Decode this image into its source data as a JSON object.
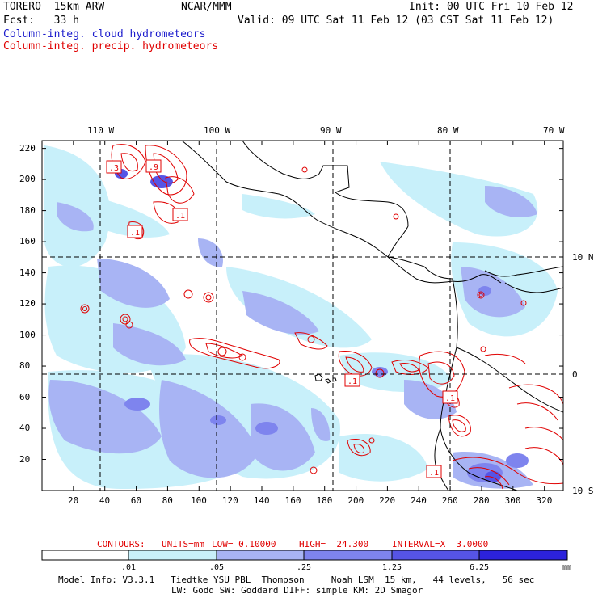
{
  "header": {
    "model_name": "TORERO  15km ARW",
    "org": "NCAR/MMM",
    "init": "Init: 00 UTC Fri 10 Feb 12",
    "fcst": "Fcst:   33 h",
    "valid": "Valid: 09 UTC Sat 11 Feb 12 (03 CST Sat 11 Feb 12)",
    "field1": "Column-integ. cloud hydrometeors",
    "field2": "Column-integ. precip. hydrometeors"
  },
  "map": {
    "lon_labels": [
      "110 W",
      "100 W",
      "90 W",
      "80 W",
      "70 W"
    ],
    "lat_labels": [
      "10 N",
      "0",
      "10 S"
    ],
    "y_ticks": [
      "220",
      "200",
      "180",
      "160",
      "140",
      "120",
      "100",
      "80",
      "60",
      "40",
      "20"
    ],
    "x_ticks": [
      "20",
      "40",
      "60",
      "80",
      "100",
      "120",
      "140",
      "160",
      "180",
      "200",
      "220",
      "240",
      "260",
      "280",
      "300",
      "320"
    ],
    "contour_boxes": [
      ".3",
      ".9",
      ".1",
      ".1",
      ".1",
      ".1",
      ".1"
    ],
    "fill_colors": [
      "#ffffff",
      "#c8f0fa",
      "#a8b4f4",
      "#7e84ee",
      "#5654e6",
      "#2c22dc"
    ],
    "contour_color": "#e00000",
    "land_color": "#000000"
  },
  "contour_info": {
    "contours": "CONTOURS:",
    "units": "UNITS=mm",
    "low": "LOW= 0.10000",
    "high": "HIGH=  24.300",
    "interval": "INTERVAL=X  3.0000"
  },
  "colorbar": {
    "labels": [
      ".01",
      ".05",
      ".25",
      "1.25",
      "6.25"
    ],
    "unit": "mm"
  },
  "footer": {
    "line1": "Model Info: V3.3.1   Tiedtke YSU PBL  Thompson     Noah LSM  15 km,   44 levels,   56 sec",
    "line2": "LW: Godd SW: Goddard DIFF: simple KM: 2D Smagor"
  }
}
